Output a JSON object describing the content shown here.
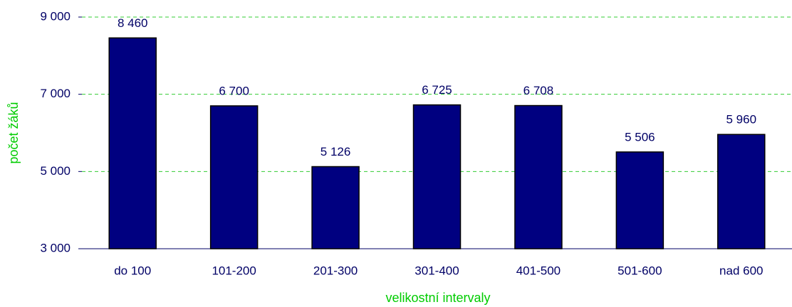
{
  "chart_data": {
    "type": "bar",
    "categories": [
      "do 100",
      "101-200",
      "201-300",
      "301-400",
      "401-500",
      "501-600",
      "nad 600"
    ],
    "values": [
      8460,
      6700,
      5126,
      6725,
      6708,
      5506,
      5960
    ],
    "value_labels": [
      "8 460",
      "6 700",
      "5 126",
      "6 725",
      "6 708",
      "5 506",
      "5 960"
    ],
    "color": "#000080",
    "xlabel": "velikostní intervaly",
    "ylabel": "počet žáků",
    "ylim": [
      3000,
      9000
    ],
    "yticks": [
      {
        "value": 3000,
        "label": "3 000"
      },
      {
        "value": 5000,
        "label": "5 000"
      },
      {
        "value": 7000,
        "label": "7 000"
      },
      {
        "value": 9000,
        "label": "9 000"
      }
    ],
    "grid": true
  }
}
